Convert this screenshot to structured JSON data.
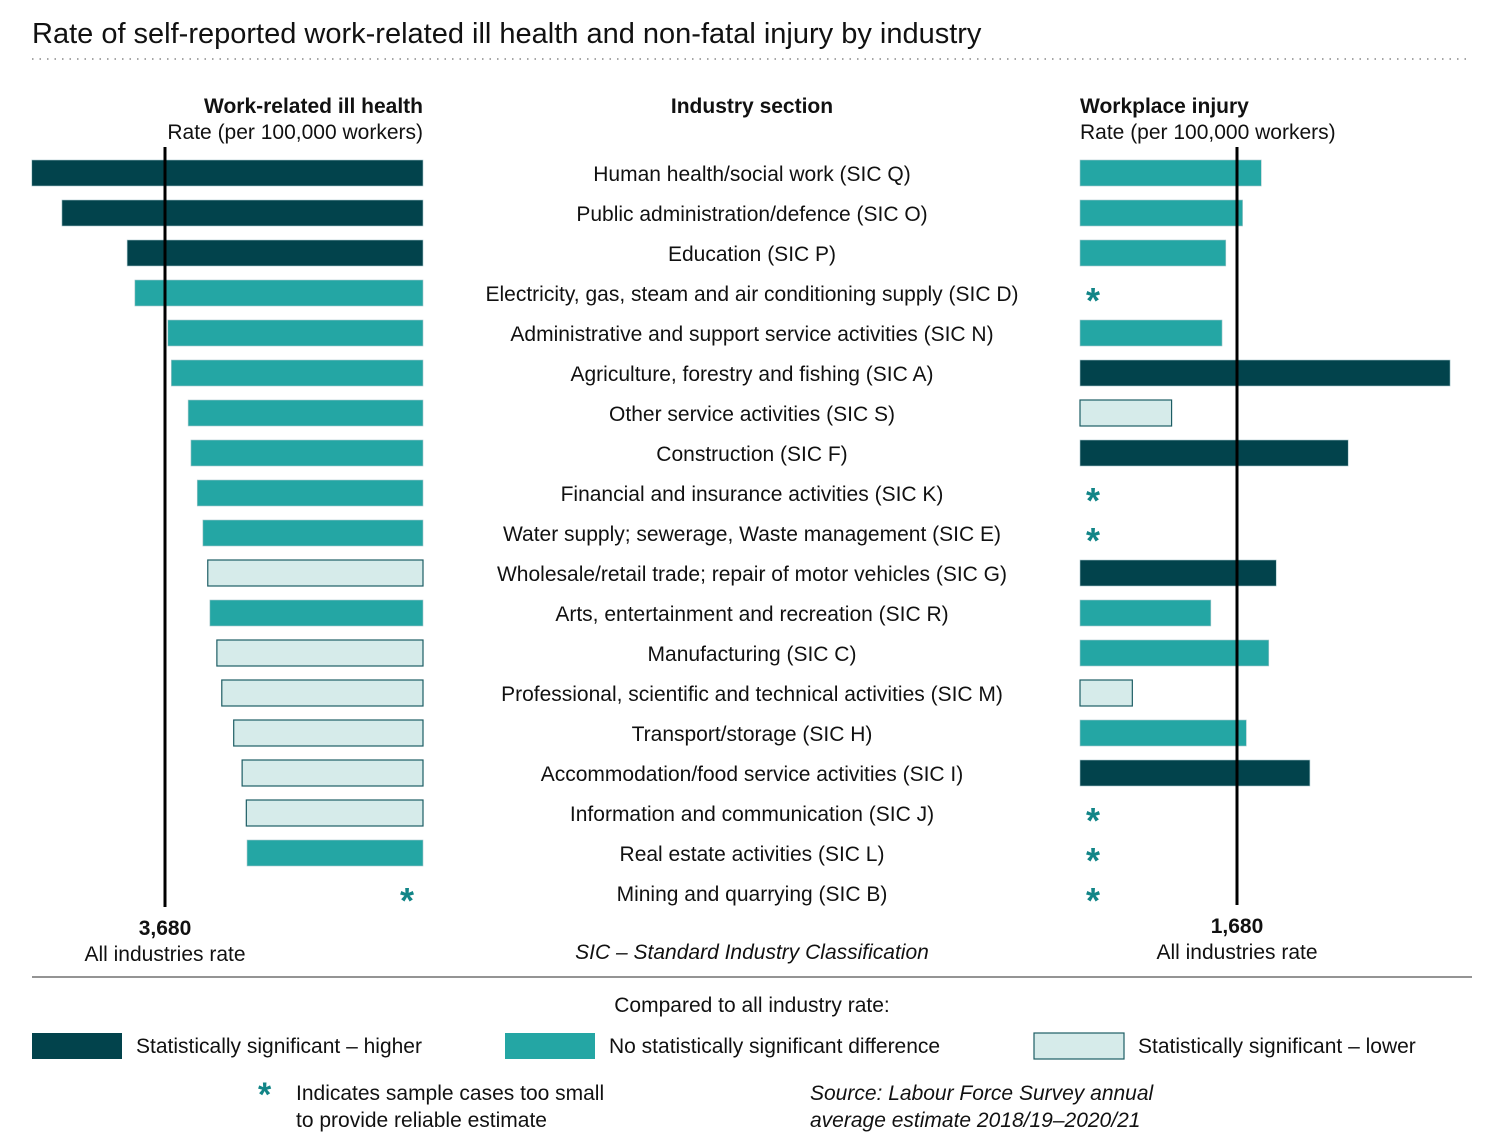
{
  "chart_data": {
    "type": "bar",
    "title": "Rate of self-reported work-related ill health and non-fatal injury by industry",
    "colors": {
      "higher": "#02434c",
      "none": "#24a6a4",
      "lower": "#d6ebea",
      "lower_border": "#1d5d64",
      "asterisk": "#128587"
    },
    "middle_header": "Industry section",
    "footnote": "SIC – Standard Industry Classification",
    "categories": [
      "Human health/social work (SIC Q)",
      "Public administration/defence (SIC O)",
      "Education (SIC P)",
      "Electricity, gas, steam and air conditioning supply (SIC D)",
      "Administrative and support service activities (SIC N)",
      "Agriculture, forestry and fishing (SIC A)",
      "Other service activities (SIC S)",
      "Construction (SIC F)",
      "Financial and insurance activities (SIC K)",
      "Water supply; sewerage, Waste management (SIC E)",
      "Wholesale/retail trade; repair of motor vehicles (SIC G)",
      "Arts, entertainment and recreation (SIC R)",
      "Manufacturing (SIC C)",
      "Professional, scientific and technical activities (SIC M)",
      "Transport/storage (SIC H)",
      "Accommodation/food service activities (SIC I)",
      "Information and communication (SIC J)",
      "Real estate activities (SIC L)",
      "Mining and quarrying (SIC B)"
    ],
    "panels": [
      {
        "title": "Work-related ill health",
        "ylabel": "Rate (per 100,000 workers)",
        "reference_value": 3680,
        "reference_label": "3,680",
        "reference_caption": "All industries rate",
        "direction": "left",
        "values": [
          5580,
          5150,
          4220,
          4110,
          3640,
          3590,
          3350,
          3310,
          3220,
          3140,
          3070,
          3040,
          2940,
          2870,
          2700,
          2580,
          2520,
          2510,
          null
        ],
        "significance": [
          "higher",
          "higher",
          "higher",
          "none",
          "none",
          "none",
          "none",
          "none",
          "none",
          "none",
          "lower",
          "none",
          "lower",
          "lower",
          "lower",
          "lower",
          "lower",
          "none",
          "small"
        ]
      },
      {
        "title": "Workplace injury",
        "ylabel": "Rate (per 100,000 workers)",
        "reference_value": 1680,
        "reference_label": "1,680",
        "reference_caption": "All industries rate",
        "direction": "right",
        "values": [
          1940,
          1740,
          1560,
          null,
          1520,
          3960,
          980,
          2870,
          null,
          null,
          2100,
          1400,
          2020,
          560,
          1780,
          2460,
          null,
          null,
          null
        ],
        "significance": [
          "none",
          "none",
          "none",
          "small",
          "none",
          "higher",
          "lower",
          "higher",
          "small",
          "small",
          "higher",
          "none",
          "none",
          "lower",
          "none",
          "higher",
          "small",
          "small",
          "small"
        ]
      }
    ],
    "legend": {
      "title": "Compared to all industry rate:",
      "entries": [
        {
          "key": "higher",
          "label": "Statistically significant – higher"
        },
        {
          "key": "none",
          "label": "No statistically significant difference"
        },
        {
          "key": "lower",
          "label": "Statistically significant – lower"
        }
      ],
      "asterisk_note": [
        "Indicates sample cases too small",
        "to provide reliable estimate"
      ],
      "source": [
        "Source: Labour Force Survey annual",
        "average estimate 2018/19–2020/21"
      ]
    }
  }
}
